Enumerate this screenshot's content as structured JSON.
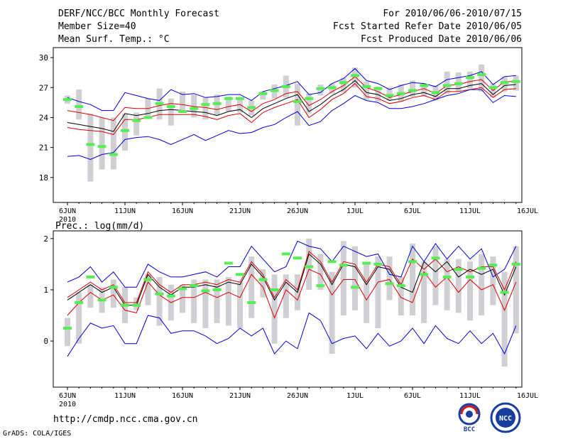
{
  "header": {
    "title": "DERF/NCC/BCC Monthly Forecast",
    "member_size": "Member Size=40",
    "variable": "Mean Surf. Temp.: °C",
    "for_range": "For 2010/06/06-2010/07/15",
    "started": "Fcst Started Refer Date 2010/06/05",
    "produced": "Fcst Produced Date 2010/06/06"
  },
  "footer": {
    "url": "http://cmdp.ncc.cma.gov.cn",
    "grads": "GrADS: COLA/IGES",
    "logo_bcc": "BCC",
    "logo_ncc": "NCC"
  },
  "colors": {
    "blue": "#0000dd",
    "red": "#dd0000",
    "black": "#000000",
    "green": "#55ee55",
    "box": "#cfcfd4"
  },
  "chart_data": [
    {
      "type": "line",
      "title": "Mean Surf. Temp.: °C",
      "x_tick_labels": [
        "6JUN",
        "11JUN",
        "16JUN",
        "21JUN",
        "26JUN",
        "1JUL",
        "6JUL",
        "11JUL",
        "16JUL"
      ],
      "year_label": "2010",
      "ylim": [
        15.5,
        31
      ],
      "yticks": [
        18,
        21,
        24,
        27,
        30
      ],
      "series": [
        {
          "name": "max",
          "color": "blue",
          "values": [
            26.0,
            25.6,
            25.3,
            24.7,
            24.7,
            26.5,
            26.2,
            25.9,
            25.7,
            26.8,
            26.3,
            26.4,
            26.0,
            26.1,
            26.3,
            26.3,
            25.7,
            26.6,
            26.9,
            27.2,
            27.6,
            26.3,
            26.5,
            27.4,
            27.9,
            28.9,
            27.7,
            27.4,
            26.8,
            27.2,
            27.5,
            27.4,
            27.1,
            27.8,
            28.0,
            28.2,
            28.6,
            27.3,
            28.1,
            28.2
          ]
        },
        {
          "name": "upper",
          "color": "red",
          "values": [
            24.7,
            24.5,
            24.3,
            24.0,
            23.7,
            25.0,
            24.9,
            24.9,
            25.2,
            25.4,
            25.3,
            25.1,
            25.0,
            24.8,
            25.1,
            25.3,
            24.6,
            25.4,
            25.8,
            26.4,
            26.6,
            25.2,
            25.8,
            26.6,
            27.2,
            28.1,
            27.0,
            26.6,
            26.0,
            26.3,
            26.6,
            26.9,
            26.4,
            27.2,
            27.3,
            27.6,
            27.8,
            26.7,
            27.6,
            27.6
          ]
        },
        {
          "name": "mean",
          "color": "black",
          "values": [
            23.5,
            23.3,
            23.1,
            22.9,
            22.6,
            24.4,
            24.2,
            24.4,
            24.7,
            24.8,
            24.7,
            24.6,
            24.5,
            24.2,
            24.6,
            24.8,
            24.0,
            24.9,
            25.4,
            25.9,
            26.3,
            24.6,
            25.3,
            26.2,
            26.8,
            27.7,
            26.5,
            26.3,
            25.7,
            25.9,
            26.3,
            26.5,
            26.1,
            26.9,
            26.9,
            27.2,
            27.4,
            26.3,
            27.2,
            27.3
          ]
        },
        {
          "name": "lower",
          "color": "red",
          "values": [
            23.0,
            22.8,
            22.7,
            22.6,
            22.3,
            23.8,
            23.8,
            24.0,
            24.3,
            24.3,
            24.3,
            24.3,
            24.1,
            23.8,
            24.2,
            24.4,
            23.5,
            24.5,
            25.0,
            25.4,
            25.8,
            24.0,
            24.8,
            25.8,
            26.4,
            27.4,
            26.1,
            25.9,
            25.4,
            25.6,
            26.0,
            26.2,
            25.8,
            26.6,
            26.6,
            26.8,
            27.0,
            26.0,
            26.8,
            26.9
          ]
        },
        {
          "name": "min",
          "color": "blue",
          "values": [
            20.1,
            20.2,
            19.8,
            20.3,
            20.5,
            21.8,
            22.0,
            22.1,
            21.8,
            21.3,
            21.8,
            22.3,
            21.7,
            22.2,
            22.7,
            22.4,
            22.5,
            23.0,
            23.3,
            24.0,
            24.6,
            23.2,
            23.6,
            24.7,
            25.4,
            26.2,
            25.7,
            25.5,
            24.9,
            24.9,
            25.1,
            25.4,
            25.8,
            26.2,
            26.4,
            26.8,
            26.8,
            25.5,
            26.2,
            26.1
          ]
        }
      ],
      "ensemble_boxes": {
        "low": [
          25.4,
          23.8,
          17.6,
          18.8,
          18.8,
          20.7,
          22.2,
          23.9,
          23.8,
          23.2,
          24.6,
          24.0,
          23.8,
          24.2,
          24.6,
          24.5,
          24.2,
          25.8,
          25.9,
          26.0,
          23.2,
          24.4,
          26.2,
          26.4,
          26.5,
          27.0,
          25.8,
          25.6,
          25.7,
          25.6,
          26.1,
          26.1,
          25.7,
          26.4,
          26.6,
          26.9,
          26.6,
          26.0,
          26.6,
          26.7
        ],
        "high": [
          26.2,
          26.8,
          24.4,
          24.0,
          24.0,
          24.4,
          24.5,
          25.9,
          26.9,
          25.9,
          26.6,
          26.3,
          26.0,
          26.3,
          26.1,
          25.9,
          25.7,
          26.6,
          27.3,
          28.2,
          27.4,
          26.4,
          27.3,
          27.4,
          28.0,
          29.0,
          27.6,
          27.1,
          27.0,
          27.3,
          27.7,
          27.4,
          27.2,
          28.6,
          28.5,
          28.6,
          29.3,
          27.4,
          28.1,
          28.2
        ]
      },
      "observed": [
        25.8,
        25.1,
        21.3,
        21.1,
        20.3,
        22.7,
        23.7,
        24.0,
        25.4,
        25.1,
        24.6,
        24.9,
        25.3,
        25.4,
        25.9,
        25.9,
        25.0,
        26.4,
        26.7,
        27.1,
        25.6,
        25.9,
        26.9,
        27.0,
        27.5,
        28.2,
        27.1,
        26.9,
        26.2,
        26.4,
        26.7,
        27.2,
        26.5,
        27.2,
        27.4,
        28.0,
        28.3,
        27.0,
        27.5,
        27.6
      ]
    },
    {
      "type": "line",
      "title": "Prec.: log(mm/d)",
      "x_tick_labels": [
        "6JUN",
        "11JUN",
        "16JUN",
        "21JUN",
        "26JUN",
        "1JUL",
        "6JUL",
        "11JUL",
        "16JUL"
      ],
      "year_label": "2010",
      "ylim": [
        -0.9,
        2.15
      ],
      "yticks": [
        0,
        1,
        2
      ],
      "series": [
        {
          "name": "max",
          "color": "blue",
          "values": [
            1.15,
            1.25,
            1.45,
            1.15,
            1.35,
            1.05,
            1.05,
            1.5,
            1.35,
            1.25,
            1.25,
            1.3,
            1.35,
            1.25,
            1.45,
            1.45,
            1.85,
            1.6,
            1.35,
            1.45,
            1.95,
            1.85,
            1.8,
            1.55,
            1.85,
            1.75,
            1.65,
            1.7,
            1.3,
            1.25,
            1.85,
            1.55,
            1.9,
            1.6,
            1.85,
            1.6,
            1.8,
            1.25,
            1.4,
            1.85
          ]
        },
        {
          "name": "upper",
          "color": "red",
          "values": [
            0.85,
            1.0,
            1.15,
            1.0,
            1.1,
            0.75,
            0.75,
            1.35,
            1.1,
            0.95,
            1.1,
            1.1,
            1.15,
            1.1,
            1.2,
            1.15,
            1.55,
            1.3,
            0.85,
            1.2,
            1.0,
            1.75,
            1.55,
            1.15,
            1.55,
            1.5,
            1.15,
            1.5,
            1.45,
            1.1,
            1.6,
            1.4,
            1.6,
            1.35,
            1.45,
            1.35,
            1.45,
            1.45,
            1.0,
            1.55
          ]
        },
        {
          "name": "mean",
          "color": "black",
          "values": [
            0.8,
            0.95,
            1.1,
            0.95,
            1.05,
            0.7,
            0.7,
            1.3,
            1.05,
            0.9,
            1.05,
            1.05,
            1.1,
            1.05,
            1.15,
            1.1,
            1.5,
            1.25,
            0.8,
            1.15,
            0.95,
            1.7,
            1.5,
            1.1,
            1.5,
            1.45,
            1.1,
            1.45,
            1.4,
            1.05,
            0.95,
            1.55,
            1.35,
            1.55,
            1.25,
            1.4,
            1.3,
            1.4,
            0.9,
            1.45
          ]
        },
        {
          "name": "lower",
          "color": "red",
          "values": [
            0.5,
            0.75,
            0.95,
            0.8,
            0.9,
            0.6,
            0.55,
            1.15,
            0.9,
            0.75,
            0.85,
            0.85,
            0.95,
            0.85,
            0.95,
            0.85,
            1.3,
            1.05,
            0.45,
            1.0,
            0.8,
            1.4,
            1.3,
            0.9,
            1.2,
            1.2,
            0.8,
            1.15,
            1.2,
            0.85,
            0.75,
            1.35,
            1.05,
            1.25,
            0.95,
            1.2,
            1.0,
            1.1,
            0.6,
            1.15
          ]
        },
        {
          "name": "min",
          "color": "blue",
          "values": [
            -0.3,
            0.05,
            0.35,
            0.25,
            0.3,
            -0.05,
            -0.05,
            0.5,
            0.45,
            0.15,
            0.2,
            0.2,
            0.1,
            -0.05,
            0.05,
            0.25,
            0.1,
            0.25,
            -0.25,
            0.0,
            -0.15,
            0.55,
            0.4,
            -0.05,
            0.05,
            0.1,
            -0.15,
            0.15,
            -0.1,
            0.0,
            0.25,
            -0.05,
            0.3,
            0.05,
            -0.05,
            0.2,
            -0.05,
            0.15,
            -0.25,
            0.3
          ]
        }
      ],
      "ensemble_boxes": {
        "low": [
          -0.1,
          -0.05,
          0.65,
          0.55,
          0.65,
          0.35,
          0.6,
          0.7,
          0.3,
          0.4,
          0.55,
          0.35,
          0.25,
          0.35,
          0.3,
          0.25,
          0.45,
          0.85,
          -0.05,
          0.45,
          0.6,
          1.0,
          1.0,
          -0.25,
          0.5,
          0.6,
          0.35,
          0.25,
          0.8,
          0.5,
          0.5,
          0.35,
          0.7,
          0.6,
          0.55,
          0.4,
          0.5,
          0.7,
          -0.5,
          0.15
        ],
        "high": [
          0.45,
          0.95,
          1.1,
          1.05,
          1.2,
          1.05,
          0.85,
          1.3,
          1.25,
          1.1,
          1.1,
          1.2,
          1.2,
          1.2,
          1.25,
          1.15,
          1.65,
          1.4,
          1.3,
          1.3,
          1.3,
          2.0,
          1.7,
          1.35,
          1.95,
          1.85,
          1.5,
          1.65,
          1.65,
          1.25,
          1.9,
          1.55,
          1.85,
          1.6,
          1.6,
          1.55,
          1.7,
          1.65,
          1.35,
          1.85
        ]
      },
      "observed": [
        0.25,
        0.75,
        1.25,
        0.8,
        1.05,
        0.7,
        0.7,
        1.2,
        0.92,
        0.88,
        1.02,
        1.08,
        0.98,
        1.0,
        1.52,
        1.3,
        0.75,
        1.2,
        1.0,
        1.7,
        1.62,
        1.45,
        1.08,
        1.55,
        1.48,
        1.05,
        1.52,
        1.5,
        1.12,
        1.08,
        1.55,
        1.3,
        1.62,
        1.25,
        1.4,
        1.25,
        1.42,
        1.48,
        0.95,
        1.5
      ]
    }
  ]
}
